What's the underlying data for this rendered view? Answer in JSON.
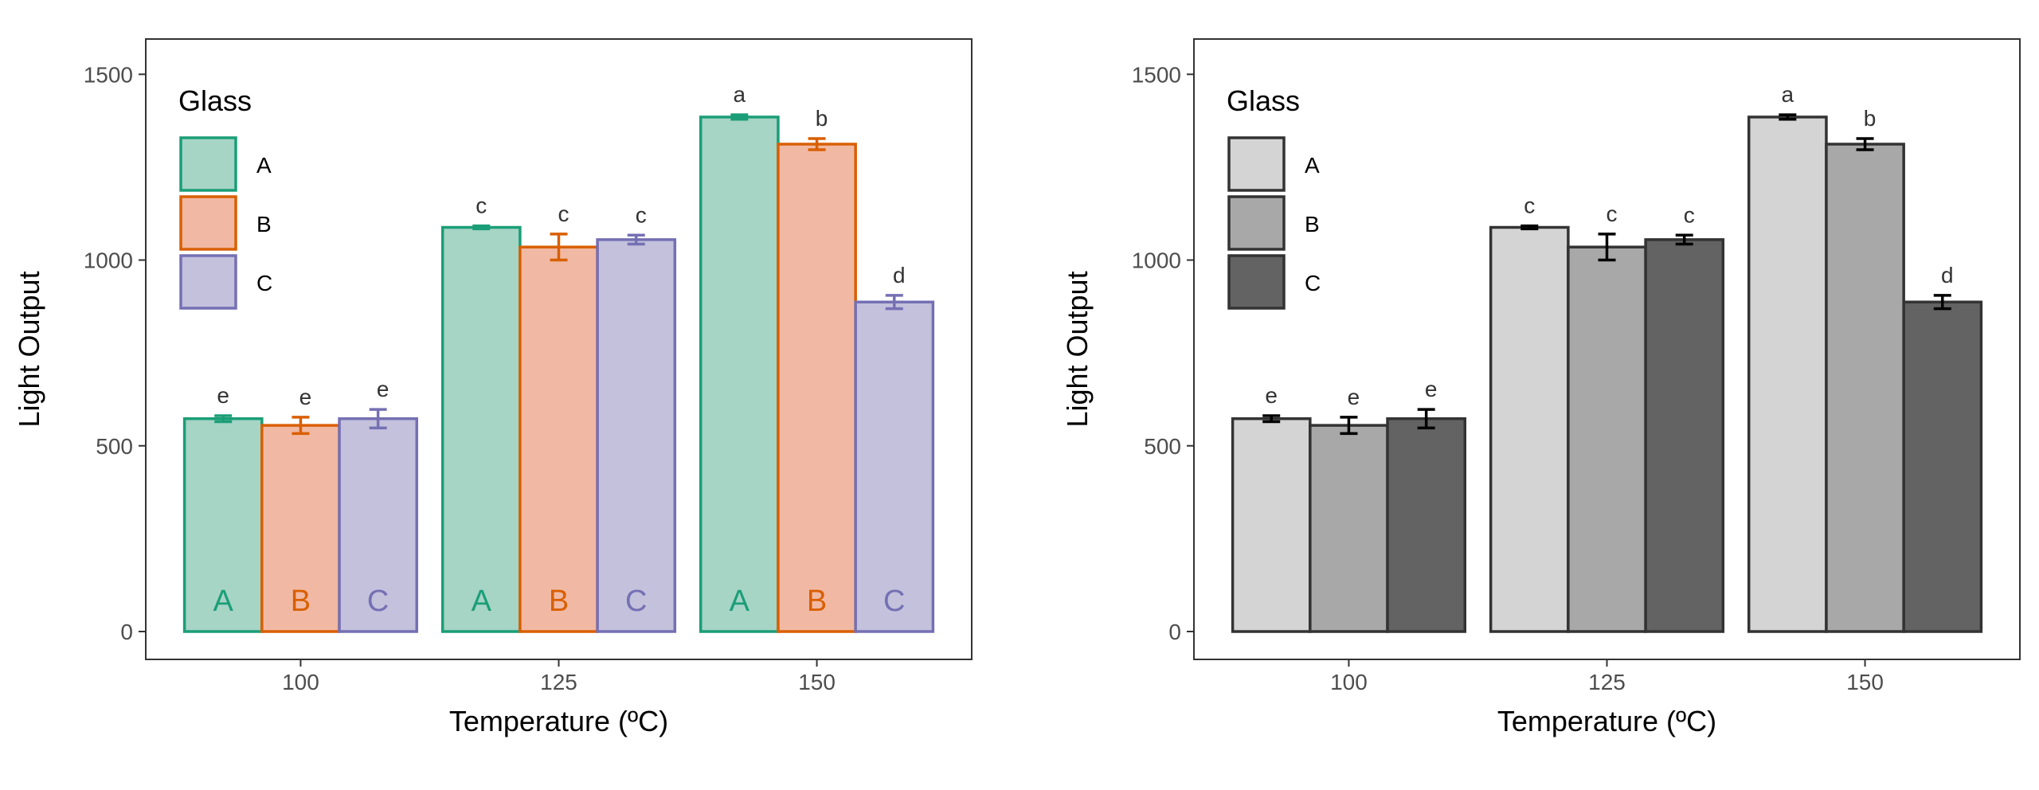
{
  "chart_data": [
    {
      "type": "bar",
      "style": "color",
      "xlabel": "Temperature (ºC)",
      "ylabel": "Light Output",
      "categories": [
        "100",
        "125",
        "150"
      ],
      "yticks": [
        0,
        500,
        1000,
        1500
      ],
      "ylim": [
        -75,
        1595
      ],
      "grid": false,
      "legend": {
        "title": "Glass",
        "placement": "top-left",
        "entries": [
          "A",
          "B",
          "C"
        ]
      },
      "series": [
        {
          "name": "A",
          "values": [
            573,
            1088,
            1385
          ],
          "errors": [
            8,
            4,
            6
          ],
          "letters": [
            "e",
            "c",
            "a"
          ],
          "fill": "#a6d4c5",
          "stroke": "#1b9e77"
        },
        {
          "name": "B",
          "values": [
            555,
            1035,
            1312
          ],
          "errors": [
            22,
            35,
            15
          ],
          "letters": [
            "e",
            "c",
            "b"
          ],
          "fill": "#f1b9a3",
          "stroke": "#d95f02"
        },
        {
          "name": "C",
          "values": [
            573,
            1055,
            887
          ],
          "errors": [
            25,
            12,
            18
          ],
          "letters": [
            "e",
            "c",
            "d"
          ],
          "fill": "#c3c1dc",
          "stroke": "#7570b3"
        }
      ],
      "bar_labels": [
        "A",
        "B",
        "C"
      ]
    },
    {
      "type": "bar",
      "style": "grayscale",
      "xlabel": "Temperature (ºC)",
      "ylabel": "Light Output",
      "categories": [
        "100",
        "125",
        "150"
      ],
      "yticks": [
        0,
        500,
        1000,
        1500
      ],
      "ylim": [
        -75,
        1595
      ],
      "grid": false,
      "legend": {
        "title": "Glass",
        "placement": "top-left",
        "entries": [
          "A",
          "B",
          "C"
        ]
      },
      "series": [
        {
          "name": "A",
          "values": [
            573,
            1088,
            1385
          ],
          "errors": [
            8,
            4,
            6
          ],
          "letters": [
            "e",
            "c",
            "a"
          ],
          "fill": "#d4d4d4",
          "stroke": "#333333"
        },
        {
          "name": "B",
          "values": [
            555,
            1035,
            1312
          ],
          "errors": [
            22,
            35,
            15
          ],
          "letters": [
            "e",
            "c",
            "b"
          ],
          "fill": "#a8a8a8",
          "stroke": "#333333"
        },
        {
          "name": "C",
          "values": [
            573,
            1055,
            887
          ],
          "errors": [
            25,
            12,
            18
          ],
          "letters": [
            "e",
            "c",
            "d"
          ],
          "fill": "#636363",
          "stroke": "#333333"
        }
      ]
    }
  ]
}
